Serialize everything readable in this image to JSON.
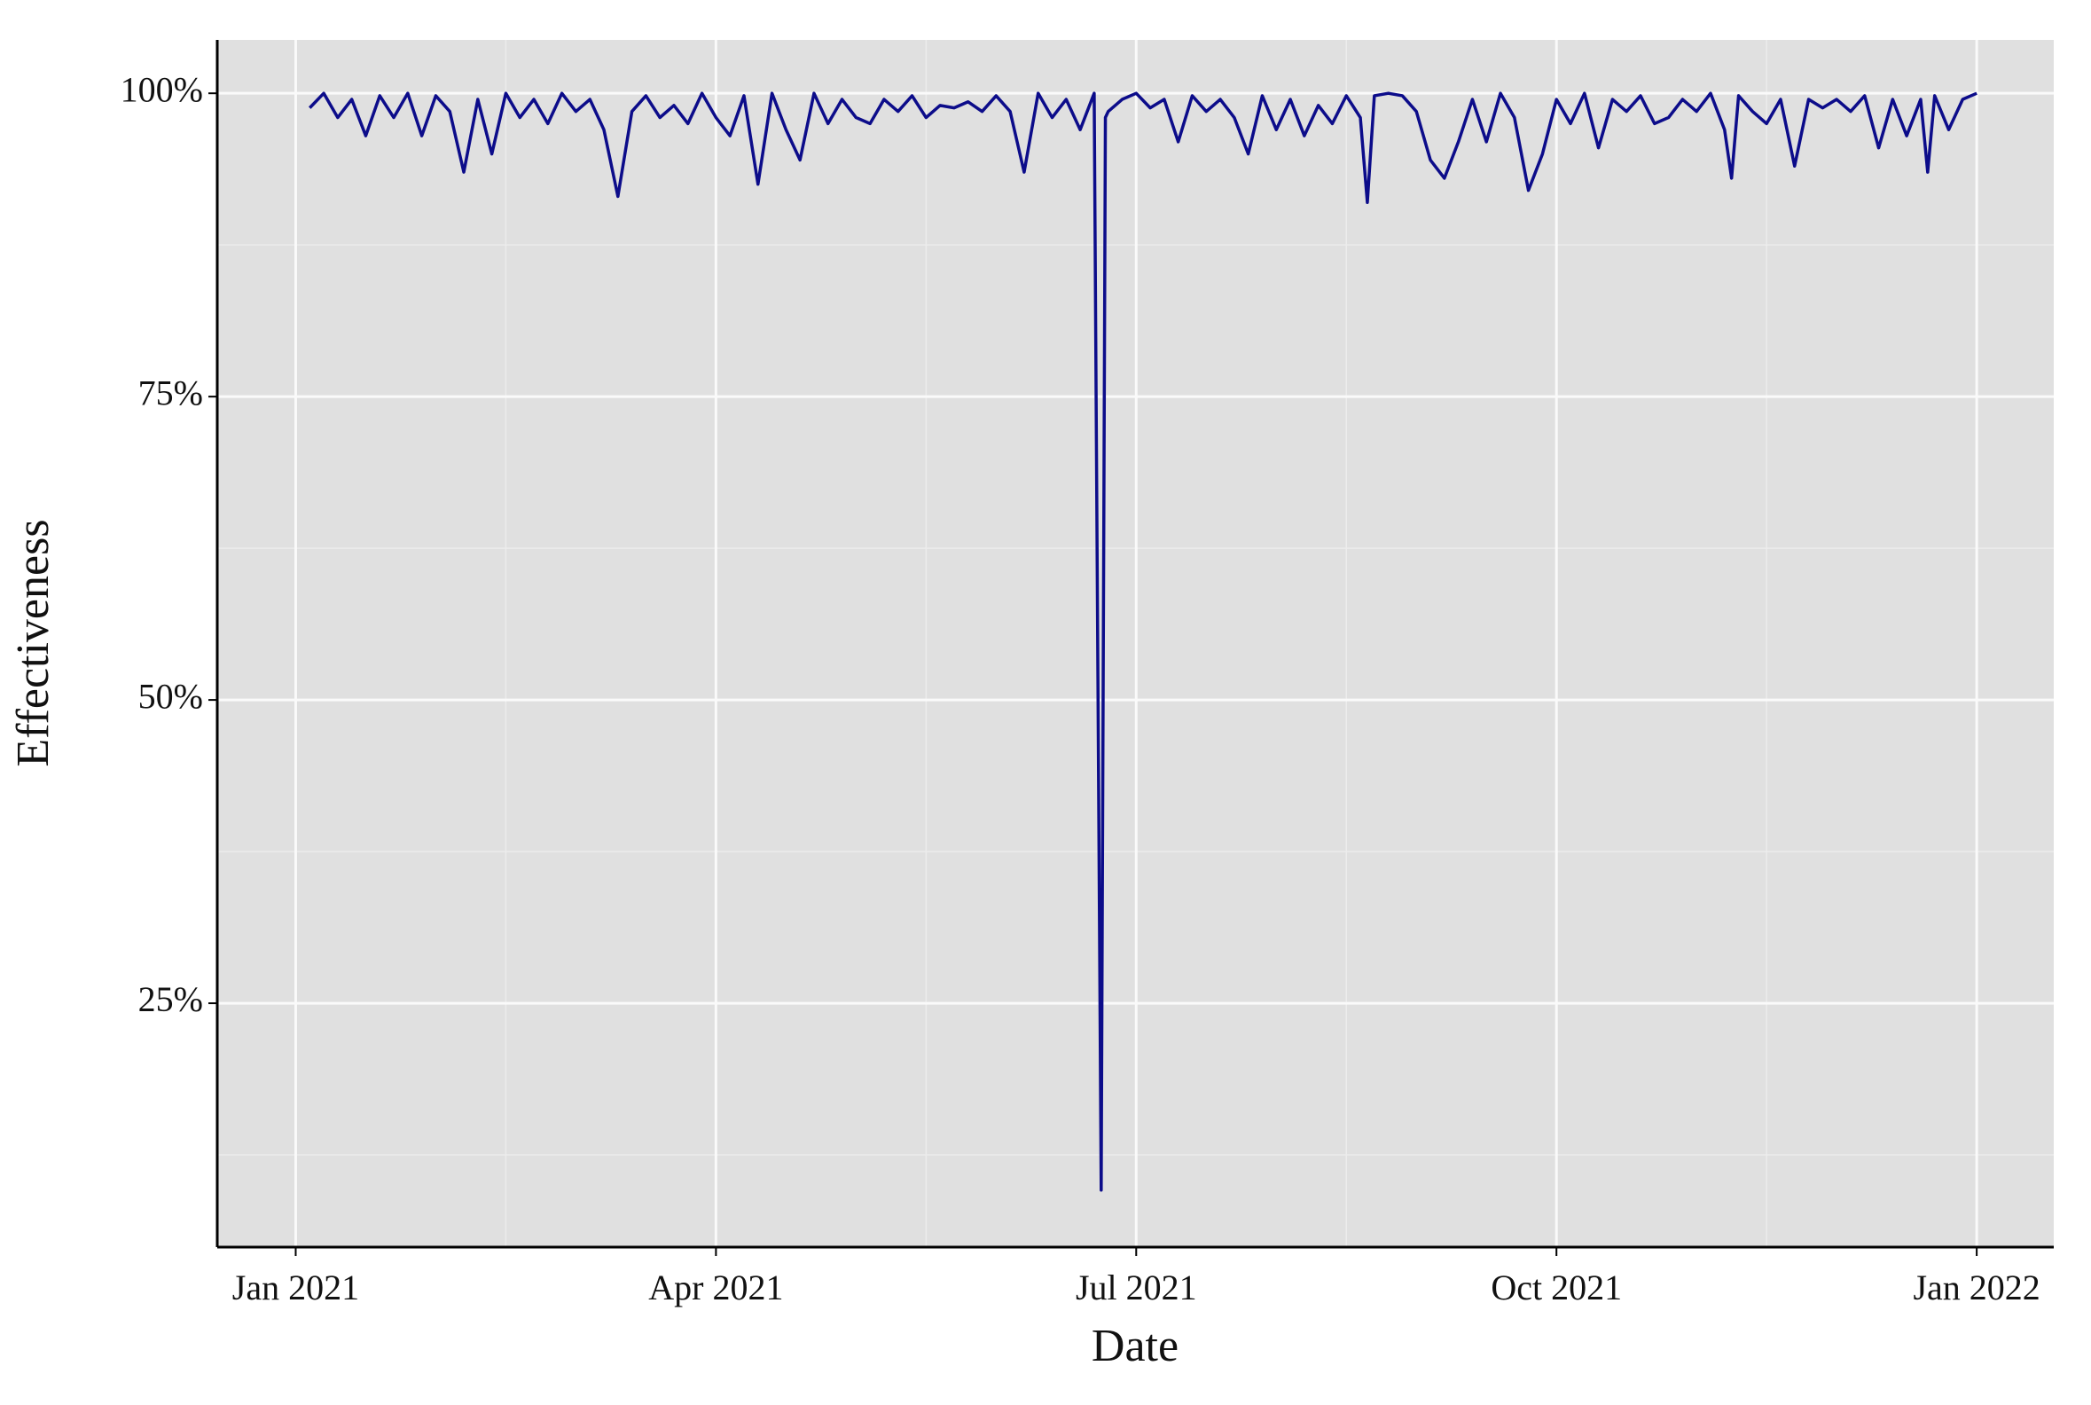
{
  "chart_data": {
    "type": "line",
    "x_label": "Date",
    "y_label": "Effectiveness",
    "x": [
      0.1,
      0.2,
      0.3,
      0.4,
      0.5,
      0.6,
      0.7,
      0.8,
      0.9,
      1.0,
      1.1,
      1.2,
      1.3,
      1.4,
      1.5,
      1.6,
      1.7,
      1.8,
      1.9,
      2.0,
      2.1,
      2.2,
      2.3,
      2.4,
      2.5,
      2.6,
      2.7,
      2.8,
      2.9,
      3.0,
      3.1,
      3.2,
      3.3,
      3.4,
      3.5,
      3.6,
      3.7,
      3.8,
      3.9,
      4.0,
      4.1,
      4.2,
      4.3,
      4.4,
      4.5,
      4.6,
      4.7,
      4.8,
      4.9,
      5.0,
      5.1,
      5.2,
      5.3,
      5.4,
      5.5,
      5.6,
      5.7,
      5.75,
      5.78,
      5.8,
      5.9,
      6.0,
      6.1,
      6.2,
      6.3,
      6.4,
      6.5,
      6.6,
      6.7,
      6.8,
      6.9,
      7.0,
      7.1,
      7.2,
      7.3,
      7.4,
      7.5,
      7.6,
      7.65,
      7.7,
      7.8,
      7.9,
      8.0,
      8.1,
      8.2,
      8.3,
      8.4,
      8.5,
      8.6,
      8.7,
      8.8,
      8.9,
      9.0,
      9.1,
      9.2,
      9.3,
      9.4,
      9.5,
      9.6,
      9.7,
      9.8,
      9.9,
      10.0,
      10.1,
      10.2,
      10.25,
      10.3,
      10.4,
      10.5,
      10.6,
      10.7,
      10.8,
      10.9,
      11.0,
      11.1,
      11.2,
      11.3,
      11.4,
      11.5,
      11.6,
      11.65,
      11.7,
      11.8,
      11.9,
      12.0
    ],
    "values": [
      98.8,
      100,
      98,
      99.5,
      96.5,
      99.8,
      98,
      100,
      96.5,
      99.8,
      98.5,
      93.5,
      99.5,
      95,
      100,
      98,
      99.5,
      97.5,
      100,
      98.5,
      99.5,
      97,
      91.5,
      98.5,
      99.8,
      98,
      99,
      97.5,
      100,
      98,
      96.5,
      99.8,
      92.5,
      100,
      97,
      94.5,
      100,
      97.5,
      99.5,
      98,
      97.5,
      99.5,
      98.5,
      99.8,
      98,
      99,
      98.8,
      99.3,
      98.5,
      99.8,
      98.5,
      93.5,
      100,
      98,
      99.5,
      97,
      100,
      9.6,
      98,
      98.5,
      99.5,
      100,
      98.8,
      99.5,
      96,
      99.8,
      98.5,
      99.5,
      98,
      95,
      99.8,
      97,
      99.5,
      96.5,
      99,
      97.5,
      99.8,
      98,
      91,
      99.8,
      100,
      99.8,
      98.5,
      94.5,
      93,
      96,
      99.5,
      96,
      100,
      98,
      92,
      95,
      99.5,
      97.5,
      100,
      95.5,
      99.5,
      98.5,
      99.8,
      97.5,
      98,
      99.5,
      98.5,
      100,
      97,
      93,
      99.8,
      98.5,
      97.5,
      99.5,
      94,
      99.5,
      98.8,
      99.5,
      98.5,
      99.8,
      95.5,
      99.5,
      96.5,
      99.5,
      93.5,
      99.8,
      97,
      99.5,
      100
    ],
    "color": "#0c0c8a",
    "xlim": [
      -0.56,
      12.55
    ],
    "xticks": [
      {
        "value": 0,
        "label": "Jan 2021"
      },
      {
        "value": 3,
        "label": "Apr 2021"
      },
      {
        "value": 6,
        "label": "Jul 2021"
      },
      {
        "value": 9,
        "label": "Oct 2021"
      },
      {
        "value": 12,
        "label": "Jan 2022"
      }
    ],
    "xminorticks": [
      1.5,
      4.5,
      7.5,
      10.5
    ],
    "ylim": [
      4.9,
      104.4
    ],
    "yticks": [
      {
        "value": 25,
        "label": "25%"
      },
      {
        "value": 50,
        "label": "50%"
      },
      {
        "value": 75,
        "label": "75%"
      },
      {
        "value": 100,
        "label": "100%"
      }
    ],
    "yminorticks": [
      12.5,
      37.5,
      62.5,
      87.5
    ],
    "grid": true
  }
}
